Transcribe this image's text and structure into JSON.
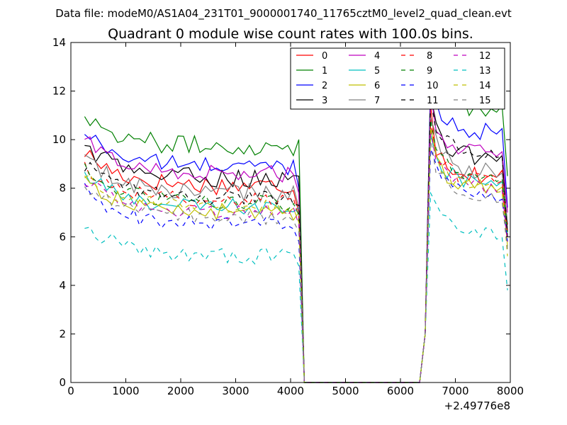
{
  "suptitle": "Data file: modeM0/AS1A04_231T01_9000001740_11765cztM0_level2_quad_clean.evt",
  "chart_data": {
    "type": "line",
    "title": "Quadrant 0 module wise count rates with 100.0s bins.",
    "xlabel": "",
    "ylabel": "",
    "x_offset_label": "+2.49776e8",
    "xlim": [
      0,
      8000
    ],
    "ylim": [
      0,
      14
    ],
    "xticks": [
      0,
      1000,
      2000,
      3000,
      4000,
      5000,
      6000,
      7000,
      8000
    ],
    "yticks": [
      0,
      2,
      4,
      6,
      8,
      10,
      12,
      14
    ],
    "grid": false,
    "legend_position": "top-right",
    "segments": [
      {
        "x_start": 250,
        "x_end": 4050,
        "step": 100
      },
      {
        "x": [
          4150,
          4250,
          4350,
          6350,
          6450,
          6550
        ]
      },
      {
        "x_start": 6650,
        "x_end": 7950,
        "step": 100
      }
    ],
    "series": [
      {
        "name": "0",
        "color": "#ff0000",
        "dash": "solid",
        "level1": 8.1,
        "amp": 0.4,
        "drop": 7.0,
        "peak": 11.4,
        "level2": 8.5,
        "end": 6.5
      },
      {
        "name": "1",
        "color": "#008000",
        "dash": "solid",
        "level1": 9.7,
        "amp": 0.4,
        "drop": 10.0,
        "peak": 12.7,
        "level2": 11.2,
        "end": 8.5
      },
      {
        "name": "2",
        "color": "#0000ff",
        "dash": "solid",
        "level1": 8.9,
        "amp": 0.35,
        "drop": 8.0,
        "peak": 12.4,
        "level2": 10.3,
        "end": 7.2
      },
      {
        "name": "3",
        "color": "#000000",
        "dash": "solid",
        "level1": 8.4,
        "amp": 0.4,
        "drop": 8.5,
        "peak": 11.8,
        "level2": 9.2,
        "end": 6.2
      },
      {
        "name": "4",
        "color": "#bf00bf",
        "dash": "solid",
        "level1": 8.6,
        "amp": 0.35,
        "drop": 7.8,
        "peak": 11.9,
        "level2": 9.4,
        "end": 7.0
      },
      {
        "name": "5",
        "color": "#00bfbf",
        "dash": "solid",
        "level1": 7.2,
        "amp": 0.35,
        "drop": 7.2,
        "peak": 10.2,
        "level2": 8.2,
        "end": 6.0
      },
      {
        "name": "6",
        "color": "#bfbf00",
        "dash": "solid",
        "level1": 7.0,
        "amp": 0.35,
        "drop": 7.0,
        "peak": 10.5,
        "level2": 8.0,
        "end": 5.6
      },
      {
        "name": "7",
        "color": "#808080",
        "dash": "solid",
        "level1": 7.8,
        "amp": 0.4,
        "drop": 7.2,
        "peak": 10.9,
        "level2": 8.6,
        "end": 6.6
      },
      {
        "name": "8",
        "color": "#ff0000",
        "dash": "dashed",
        "level1": 7.5,
        "amp": 0.3,
        "drop": 6.8,
        "peak": 10.8,
        "level2": 8.3,
        "end": 6.1
      },
      {
        "name": "9",
        "color": "#008000",
        "dash": "dashed",
        "level1": 7.4,
        "amp": 0.3,
        "drop": 6.9,
        "peak": 10.8,
        "level2": 8.4,
        "end": 6.2
      },
      {
        "name": "10",
        "color": "#0000ff",
        "dash": "dashed",
        "level1": 6.5,
        "amp": 0.35,
        "drop": 5.8,
        "peak": 9.6,
        "level2": 7.6,
        "end": 5.8
      },
      {
        "name": "11",
        "color": "#000000",
        "dash": "dashed",
        "level1": 7.6,
        "amp": 0.3,
        "drop": 7.3,
        "peak": 11.7,
        "level2": 9.4,
        "end": 6.0
      },
      {
        "name": "12",
        "color": "#bf00bf",
        "dash": "dashed",
        "level1": 7.0,
        "amp": 0.3,
        "drop": 6.5,
        "peak": 10.4,
        "level2": 8.0,
        "end": 5.8
      },
      {
        "name": "13",
        "color": "#00bfbf",
        "dash": "dashed",
        "level1": 5.2,
        "amp": 0.35,
        "drop": 4.8,
        "peak": 7.8,
        "level2": 6.1,
        "end": 3.8
      },
      {
        "name": "14",
        "color": "#bfbf00",
        "dash": "dashed",
        "level1": 7.2,
        "amp": 0.3,
        "drop": 6.6,
        "peak": 10.5,
        "level2": 8.0,
        "end": 5.2
      },
      {
        "name": "15",
        "color": "#808080",
        "dash": "dashed",
        "level1": 6.8,
        "amp": 0.3,
        "drop": 6.2,
        "peak": 10.1,
        "level2": 7.6,
        "end": 5.5
      }
    ]
  }
}
